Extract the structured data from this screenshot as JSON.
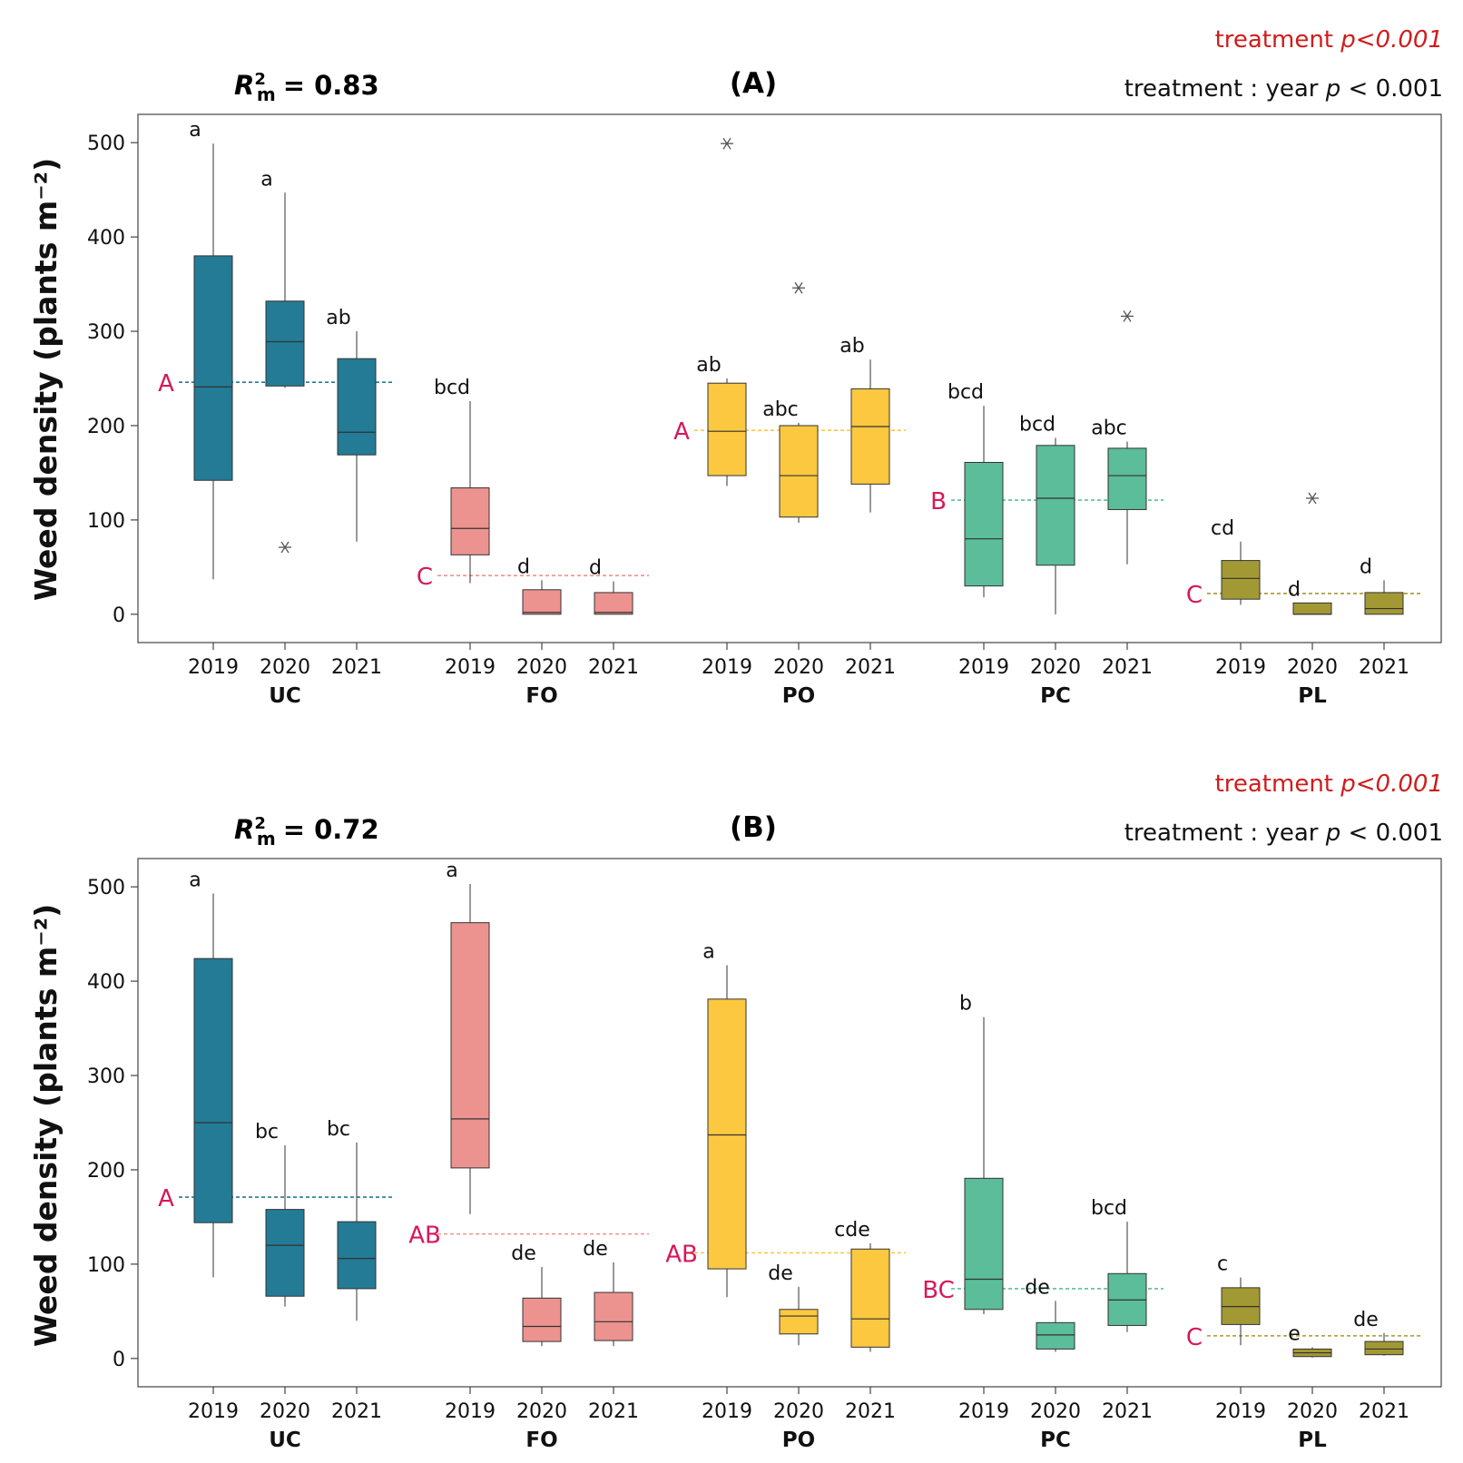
{
  "chart_data": [
    {
      "type": "boxplot",
      "panel_label": "(A)",
      "r2_label": "= 0.83",
      "sig_treatment": {
        "label": "treatment",
        "p": "p<0.001"
      },
      "sig_interaction": {
        "label": "treatment : year",
        "p": "p",
        "rest": "< 0.001"
      },
      "ylabel": "Weed density (plants m⁻²)",
      "ylim": [
        -30,
        530
      ],
      "yticks": [
        0,
        100,
        200,
        300,
        400,
        500
      ],
      "groups": [
        {
          "name": "UC",
          "color": "#237b96",
          "mean_line": 246,
          "mean_letter": "A",
          "boxes": [
            {
              "year": "2019",
              "min": 37,
              "q1": 142,
              "median": 241,
              "q3": 380,
              "max": 499,
              "letter": "a",
              "outliers": []
            },
            {
              "year": "2020",
              "min": 240,
              "q1": 242,
              "median": 289,
              "q3": 332,
              "max": 447,
              "letter": "a",
              "outliers": [
                71
              ]
            },
            {
              "year": "2021",
              "min": 77,
              "q1": 169,
              "median": 193,
              "q3": 271,
              "max": 300,
              "letter": "ab",
              "outliers": []
            }
          ]
        },
        {
          "name": "FO",
          "color": "#ec9390",
          "mean_line": 41,
          "mean_letter": "C",
          "boxes": [
            {
              "year": "2019",
              "min": 33,
              "q1": 63,
              "median": 91,
              "q3": 134,
              "max": 226,
              "letter": "bcd",
              "outliers": []
            },
            {
              "year": "2020",
              "min": 0,
              "q1": 0,
              "median": 2,
              "q3": 26,
              "max": 36,
              "letter": "d",
              "outliers": []
            },
            {
              "year": "2021",
              "min": 0,
              "q1": 0,
              "median": 2,
              "q3": 23,
              "max": 35,
              "letter": "d",
              "outliers": []
            }
          ]
        },
        {
          "name": "PO",
          "color": "#fbc840",
          "mean_line": 195,
          "mean_letter": "A",
          "boxes": [
            {
              "year": "2019",
              "min": 136,
              "q1": 147,
              "median": 194,
              "q3": 245,
              "max": 250,
              "letter": "ab",
              "outliers": [
                499
              ]
            },
            {
              "year": "2020",
              "min": 97,
              "q1": 103,
              "median": 147,
              "q3": 200,
              "max": 203,
              "letter": "abc",
              "outliers": [
                346
              ]
            },
            {
              "year": "2021",
              "min": 108,
              "q1": 138,
              "median": 199,
              "q3": 239,
              "max": 270,
              "letter": "ab",
              "outliers": []
            }
          ]
        },
        {
          "name": "PC",
          "color": "#5bbd9a",
          "mean_line": 121,
          "mean_letter": "B",
          "boxes": [
            {
              "year": "2019",
              "min": 18,
              "q1": 30,
              "median": 80,
              "q3": 161,
              "max": 221,
              "letter": "bcd",
              "outliers": []
            },
            {
              "year": "2020",
              "min": 0,
              "q1": 52,
              "median": 123,
              "q3": 179,
              "max": 187,
              "letter": "bcd",
              "outliers": []
            },
            {
              "year": "2021",
              "min": 53,
              "q1": 111,
              "median": 147,
              "q3": 176,
              "max": 183,
              "letter": "abc",
              "outliers": [
                316
              ]
            }
          ]
        },
        {
          "name": "PL",
          "color": "#a39934",
          "mean_line": 22,
          "mean_letter": "C",
          "boxes": [
            {
              "year": "2019",
              "min": 10,
              "q1": 16,
              "median": 38,
              "q3": 57,
              "max": 77,
              "letter": "cd",
              "outliers": []
            },
            {
              "year": "2020",
              "min": 0,
              "q1": 0,
              "median": 0,
              "q3": 12,
              "max": 12,
              "letter": "d",
              "outliers": [
                123
              ]
            },
            {
              "year": "2021",
              "min": 0,
              "q1": 0,
              "median": 6,
              "q3": 23,
              "max": 36,
              "letter": "d",
              "outliers": []
            }
          ]
        }
      ]
    },
    {
      "type": "boxplot",
      "panel_label": "(B)",
      "r2_label": "= 0.72",
      "sig_treatment": {
        "label": "treatment",
        "p": "p<0.001"
      },
      "sig_interaction": {
        "label": "treatment : year",
        "p": "p",
        "rest": "< 0.001"
      },
      "ylabel": "Weed density (plants m⁻²)",
      "ylim": [
        -30,
        530
      ],
      "yticks": [
        0,
        100,
        200,
        300,
        400,
        500
      ],
      "groups": [
        {
          "name": "UC",
          "color": "#237b96",
          "mean_line": 171,
          "mean_letter": "A",
          "boxes": [
            {
              "year": "2019",
              "min": 86,
              "q1": 144,
              "median": 250,
              "q3": 424,
              "max": 493,
              "letter": "a",
              "outliers": []
            },
            {
              "year": "2020",
              "min": 55,
              "q1": 66,
              "median": 120,
              "q3": 158,
              "max": 226,
              "letter": "bc",
              "outliers": []
            },
            {
              "year": "2021",
              "min": 40,
              "q1": 74,
              "median": 106,
              "q3": 145,
              "max": 229,
              "letter": "bc",
              "outliers": []
            }
          ]
        },
        {
          "name": "FO",
          "color": "#ec9390",
          "mean_line": 132,
          "mean_letter": "AB",
          "boxes": [
            {
              "year": "2019",
              "min": 153,
              "q1": 202,
              "median": 254,
              "q3": 462,
              "max": 503,
              "letter": "a",
              "outliers": []
            },
            {
              "year": "2020",
              "min": 13,
              "q1": 18,
              "median": 34,
              "q3": 64,
              "max": 97,
              "letter": "de",
              "outliers": []
            },
            {
              "year": "2021",
              "min": 13,
              "q1": 19,
              "median": 39,
              "q3": 70,
              "max": 102,
              "letter": "de",
              "outliers": []
            }
          ]
        },
        {
          "name": "PO",
          "color": "#fbc840",
          "mean_line": 112,
          "mean_letter": "AB",
          "boxes": [
            {
              "year": "2019",
              "min": 65,
              "q1": 95,
              "median": 237,
              "q3": 381,
              "max": 417,
              "letter": "a",
              "outliers": []
            },
            {
              "year": "2020",
              "min": 14,
              "q1": 26,
              "median": 45,
              "q3": 52,
              "max": 76,
              "letter": "de",
              "outliers": []
            },
            {
              "year": "2021",
              "min": 7,
              "q1": 12,
              "median": 42,
              "q3": 116,
              "max": 122,
              "letter": "cde",
              "outliers": []
            }
          ]
        },
        {
          "name": "PC",
          "color": "#5bbd9a",
          "mean_line": 74,
          "mean_letter": "BC",
          "boxes": [
            {
              "year": "2019",
              "min": 47,
              "q1": 52,
              "median": 84,
              "q3": 191,
              "max": 362,
              "letter": "b",
              "outliers": []
            },
            {
              "year": "2020",
              "min": 7,
              "q1": 10,
              "median": 25,
              "q3": 38,
              "max": 61,
              "letter": "de",
              "outliers": []
            },
            {
              "year": "2021",
              "min": 28,
              "q1": 35,
              "median": 62,
              "q3": 90,
              "max": 145,
              "letter": "bcd",
              "outliers": []
            }
          ]
        },
        {
          "name": "PL",
          "color": "#a39934",
          "mean_line": 24,
          "mean_letter": "C",
          "boxes": [
            {
              "year": "2019",
              "min": 14,
              "q1": 36,
              "median": 55,
              "q3": 75,
              "max": 86,
              "letter": "c",
              "outliers": []
            },
            {
              "year": "2020",
              "min": 1,
              "q1": 2,
              "median": 6,
              "q3": 10,
              "max": 12,
              "letter": "e",
              "outliers": []
            },
            {
              "year": "2021",
              "min": 3,
              "q1": 4,
              "median": 10,
              "q3": 18,
              "max": 27,
              "letter": "de",
              "outliers": []
            }
          ]
        }
      ]
    }
  ]
}
